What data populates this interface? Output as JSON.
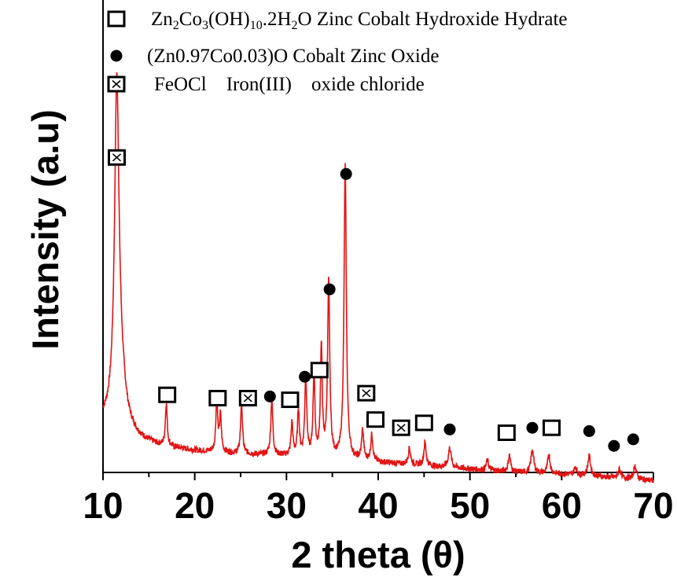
{
  "chart_data": {
    "type": "line",
    "xlabel": "2 theta (θ)",
    "ylabel": "Intensity (a.u)",
    "xlim": [
      10,
      70
    ],
    "ylim": [
      0,
      100
    ],
    "x_ticks": [
      "10",
      "20",
      "30",
      "40",
      "50",
      "60",
      "70"
    ],
    "line_color": "#e21414",
    "baseline": [
      [
        10,
        20
      ],
      [
        12,
        17.5
      ],
      [
        14,
        15
      ],
      [
        16,
        13.5
      ],
      [
        20,
        12
      ],
      [
        25,
        11
      ],
      [
        30,
        10.5
      ],
      [
        35,
        9.5
      ],
      [
        40,
        8.5
      ],
      [
        45,
        7.5
      ],
      [
        50,
        6.5
      ],
      [
        55,
        5.5
      ],
      [
        60,
        5
      ],
      [
        65,
        4
      ],
      [
        70,
        3
      ]
    ],
    "peaks": [
      {
        "x": 11.5,
        "y": 93,
        "w": 0.28
      },
      {
        "x": 11.8,
        "y": 18,
        "w": 0.7
      },
      {
        "x": 16.9,
        "y": 13,
        "w": 0.12
      },
      {
        "x": 22.4,
        "y": 16,
        "w": 0.12
      },
      {
        "x": 22.8,
        "y": 11,
        "w": 0.12
      },
      {
        "x": 25.1,
        "y": 16,
        "w": 0.12
      },
      {
        "x": 28.4,
        "y": 17,
        "w": 0.13
      },
      {
        "x": 30.6,
        "y": 10,
        "w": 0.12
      },
      {
        "x": 31.3,
        "y": 14,
        "w": 0.12
      },
      {
        "x": 32.1,
        "y": 24,
        "w": 0.13
      },
      {
        "x": 33.0,
        "y": 25,
        "w": 0.12
      },
      {
        "x": 33.8,
        "y": 33,
        "w": 0.12
      },
      {
        "x": 34.6,
        "y": 53,
        "w": 0.14
      },
      {
        "x": 36.4,
        "y": 89,
        "w": 0.15
      },
      {
        "x": 38.3,
        "y": 9,
        "w": 0.14
      },
      {
        "x": 39.3,
        "y": 8,
        "w": 0.14
      },
      {
        "x": 43.4,
        "y": 5,
        "w": 0.15
      },
      {
        "x": 45.1,
        "y": 7,
        "w": 0.15
      },
      {
        "x": 47.8,
        "y": 6,
        "w": 0.18
      },
      {
        "x": 51.9,
        "y": 3,
        "w": 0.15
      },
      {
        "x": 54.3,
        "y": 5,
        "w": 0.15
      },
      {
        "x": 56.8,
        "y": 7,
        "w": 0.18
      },
      {
        "x": 58.6,
        "y": 6,
        "w": 0.15
      },
      {
        "x": 61.5,
        "y": 2.5,
        "w": 0.15
      },
      {
        "x": 63.0,
        "y": 6,
        "w": 0.18
      },
      {
        "x": 66.3,
        "y": 3,
        "w": 0.15
      },
      {
        "x": 68.0,
        "y": 4,
        "w": 0.18
      }
    ],
    "markers": [
      {
        "symbol": "crossed-square",
        "x": 11.5,
        "y": 101
      },
      {
        "symbol": "open-square",
        "x": 17.0,
        "y": 29
      },
      {
        "symbol": "open-square",
        "x": 22.5,
        "y": 28
      },
      {
        "symbol": "crossed-square",
        "x": 25.8,
        "y": 28
      },
      {
        "symbol": "filled-circle",
        "x": 28.2,
        "y": 28.5
      },
      {
        "symbol": "open-square",
        "x": 30.4,
        "y": 27.5
      },
      {
        "symbol": "filled-circle",
        "x": 32.0,
        "y": 34.5
      },
      {
        "symbol": "open-square",
        "x": 33.6,
        "y": 36.5
      },
      {
        "symbol": "filled-circle",
        "x": 34.7,
        "y": 61
      },
      {
        "symbol": "filled-circle",
        "x": 36.5,
        "y": 96
      },
      {
        "symbol": "crossed-square",
        "x": 38.7,
        "y": 29.5
      },
      {
        "symbol": "open-square",
        "x": 39.7,
        "y": 21.5
      },
      {
        "symbol": "crossed-square",
        "x": 42.5,
        "y": 19
      },
      {
        "symbol": "open-square",
        "x": 45.0,
        "y": 20.5
      },
      {
        "symbol": "filled-circle",
        "x": 47.8,
        "y": 18.5
      },
      {
        "symbol": "open-square",
        "x": 54.0,
        "y": 17.5
      },
      {
        "symbol": "filled-circle",
        "x": 56.8,
        "y": 19
      },
      {
        "symbol": "open-square",
        "x": 58.9,
        "y": 19
      },
      {
        "symbol": "filled-circle",
        "x": 63.0,
        "y": 18
      },
      {
        "symbol": "filled-circle",
        "x": 65.7,
        "y": 13.5
      },
      {
        "symbol": "filled-circle",
        "x": 67.8,
        "y": 15.5
      }
    ],
    "legend": {
      "placement": "top",
      "entries": [
        {
          "symbol": "open-square",
          "formula": [
            "Zn",
            "2",
            "Co",
            "3",
            "(OH)",
            "10",
            ".2H",
            "2",
            "O"
          ],
          "name": "Zinc Cobalt Hydroxide Hydrate"
        },
        {
          "symbol": "filled-circle",
          "formula": [
            "(Zn0.97Co0.03)O"
          ],
          "name": "Cobalt Zinc Oxide"
        },
        {
          "symbol": "crossed-square",
          "formula": [
            "FeOCl"
          ],
          "name": "Iron(III)    oxide chloride"
        }
      ]
    }
  }
}
